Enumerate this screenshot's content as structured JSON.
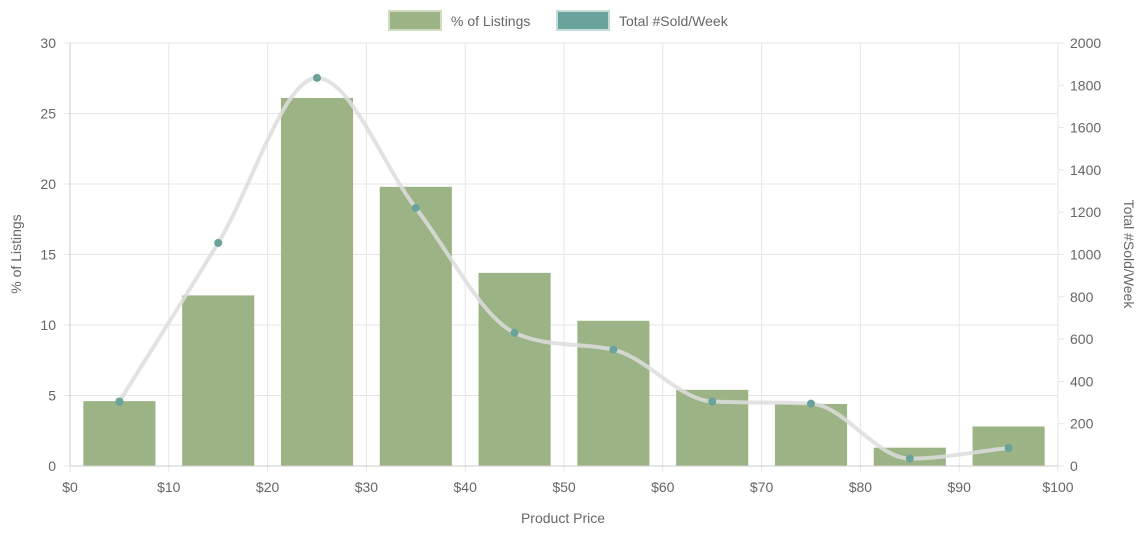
{
  "chart_data": {
    "type": "bar",
    "xlabel": "Product Price",
    "x_ticks": [
      "$0",
      "$10",
      "$20",
      "$30",
      "$40",
      "$50",
      "$60",
      "$70",
      "$80",
      "$90",
      "$100"
    ],
    "bin_centers": [
      5,
      15,
      25,
      35,
      45,
      55,
      65,
      75,
      85,
      95
    ],
    "xlim": [
      0,
      100
    ],
    "y_left": {
      "label": "% of Listings",
      "lim": [
        0,
        30
      ],
      "ticks": [
        "0",
        "5",
        "10",
        "15",
        "20",
        "25",
        "30"
      ]
    },
    "y_right": {
      "label": "Total #Sold/Week",
      "lim": [
        0,
        2000
      ],
      "ticks": [
        "0",
        "200",
        "400",
        "600",
        "800",
        "1000",
        "1200",
        "1400",
        "1600",
        "1800",
        "2000"
      ]
    },
    "legend_position": "top-center",
    "grid": true,
    "series": [
      {
        "name": "% of Listings",
        "type": "bar",
        "axis": "left",
        "color": "#9cb385",
        "values": [
          4.6,
          12.1,
          26.1,
          19.8,
          13.7,
          10.3,
          5.4,
          4.4,
          1.3,
          2.8
        ]
      },
      {
        "name": "Total #Sold/Week",
        "type": "line",
        "axis": "right",
        "color": "#6aa39b",
        "line_color": "#dddddd",
        "values": [
          305,
          1055,
          1835,
          1220,
          630,
          550,
          305,
          295,
          35,
          85
        ]
      }
    ]
  }
}
